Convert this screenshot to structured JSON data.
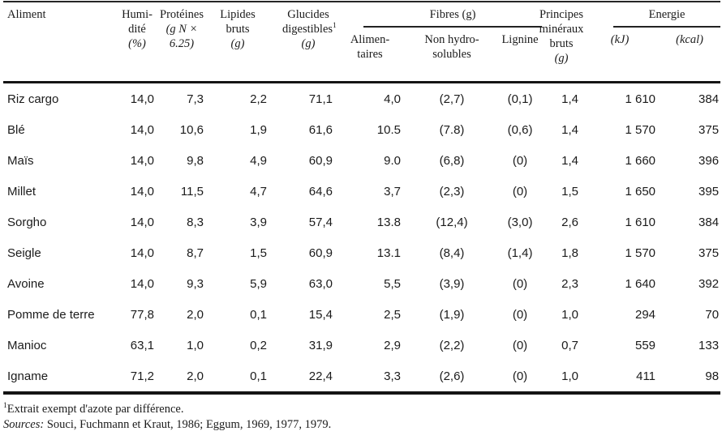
{
  "page": {
    "background": "#ffffff",
    "text_color": "#1b1b1b",
    "rule_color": "#141414"
  },
  "table": {
    "header": {
      "aliment": "Aliment",
      "humidite": {
        "line1": "Humi-",
        "line2": "dité",
        "unit": "(%)"
      },
      "proteines": {
        "line1": "Protéines",
        "unit_line1": "(g N ×",
        "unit_line2": "6.25)"
      },
      "lipides": {
        "line1": "Lipides",
        "line2": "bruts",
        "unit": "(g)"
      },
      "glucides": {
        "line1": "Glucides",
        "line2": "digestibles",
        "footnote_marker": "1",
        "unit": "(g)"
      },
      "fibres": {
        "group": "Fibres (g)",
        "alimentaires_line1": "Alimen-",
        "alimentaires_line2": "taires",
        "non_hydro_line1": "Non hydro-",
        "non_hydro_line2": "solubles",
        "lignine": "Lignine"
      },
      "principes": {
        "line1": "Principes",
        "line2": "minéraux",
        "line3": "bruts",
        "unit": "(g)"
      },
      "energie": {
        "group": "Energie",
        "kj": "(kJ)",
        "kcal": "(kcal)"
      }
    },
    "col_keys": [
      "aliment",
      "humidite",
      "proteines",
      "lipides-bruts",
      "glucides-digestibles",
      "fibres-alimentaires",
      "fibres-non-hydrosolubles",
      "fibres-lignine",
      "principes-mineraux-bruts",
      "energie-kj",
      "energie-kcal"
    ],
    "rows": [
      [
        "Riz cargo",
        "14,0",
        "7,3",
        "2,2",
        "71,1",
        "4,0",
        "(2,7)",
        "(0,1)",
        "1,4",
        "1 610",
        "384"
      ],
      [
        "Blé",
        "14,0",
        "10,6",
        "1,9",
        "61,6",
        "10.5",
        "(7.8)",
        "(0,6)",
        "1,4",
        "1 570",
        "375"
      ],
      [
        "Maïs",
        "14,0",
        "9,8",
        "4,9",
        "60,9",
        "9.0",
        "(6,8)",
        "(0)",
        "1,4",
        "1 660",
        "396"
      ],
      [
        "Millet",
        "14,0",
        "11,5",
        "4,7",
        "64,6",
        "3,7",
        "(2,3)",
        "(0)",
        "1,5",
        "1 650",
        "395"
      ],
      [
        "Sorgho",
        "14,0",
        "8,3",
        "3,9",
        "57,4",
        "13.8",
        "(12,4)",
        "(3,0)",
        "2,6",
        "1 610",
        "384"
      ],
      [
        "Seigle",
        "14,0",
        "8,7",
        "1,5",
        "60,9",
        "13.1",
        "(8,4)",
        "(1,4)",
        "1,8",
        "1 570",
        "375"
      ],
      [
        "Avoine",
        "14,0",
        "9,3",
        "5,9",
        "63,0",
        "5,5",
        "(3,9)",
        "(0)",
        "2,3",
        "1 640",
        "392"
      ],
      [
        "Pomme de terre",
        "77,8",
        "2,0",
        "0,1",
        "15,4",
        "2,5",
        "(1,9)",
        "(0)",
        "1,0",
        "294",
        "70"
      ],
      [
        "Manioc",
        "63,1",
        "1,0",
        "0,2",
        "31,9",
        "2,9",
        "(2,2)",
        "(0)",
        "0,7",
        "559",
        "133"
      ],
      [
        "Igname",
        "71,2",
        "2,0",
        "0,1",
        "22,4",
        "3,3",
        "(2,6)",
        "(0)",
        "1,0",
        "411",
        "98"
      ]
    ]
  },
  "footnotes": {
    "note1_marker": "1",
    "note1_text": "Extrait exempt d'azote par différence.",
    "sources_label": "Sources:",
    "sources_text": " Souci, Fuchmann et Kraut, 1986;  Eggum, 1969, 1977, 1979."
  }
}
